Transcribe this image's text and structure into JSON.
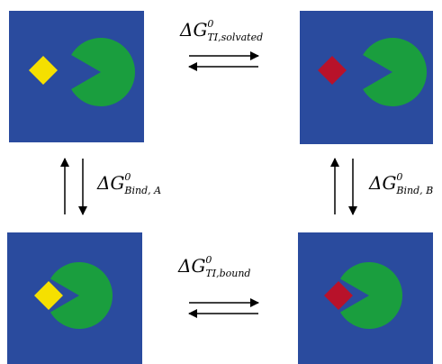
{
  "labels": [
    {
      "symbol": "ΔG",
      "sup": "0",
      "sub": "TI,solvated"
    },
    {
      "symbol": "ΔG",
      "sup": "0",
      "sub": "Bind, A"
    },
    {
      "symbol": "ΔG",
      "sup": "0",
      "sub": "Bind, B"
    },
    {
      "symbol": "ΔG",
      "sup": "0",
      "sub": "TI,bound"
    }
  ]
}
